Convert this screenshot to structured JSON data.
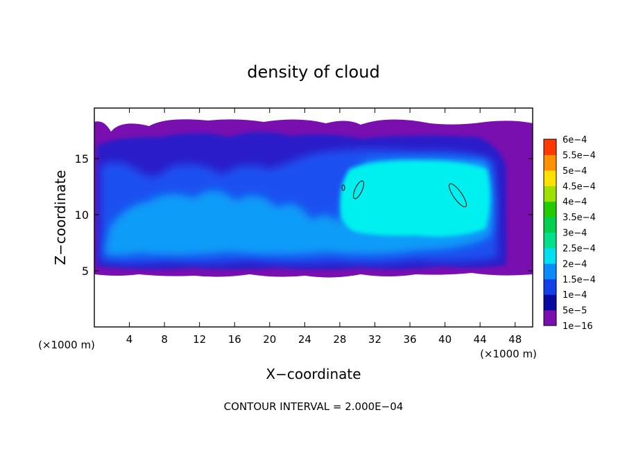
{
  "chart_data": {
    "type": "heatmap",
    "title": "density of cloud",
    "xlabel": "X−coordinate",
    "ylabel": "Z−coordinate",
    "x_unit_left": "(×1000 m)",
    "x_unit_right": "(×1000 m)",
    "footer": "CONTOUR INTERVAL = 2.000E−04",
    "xlim": [
      0,
      50
    ],
    "ylim": [
      0,
      19.5
    ],
    "x_ticks": [
      4,
      8,
      12,
      16,
      20,
      24,
      28,
      32,
      36,
      40,
      44,
      48
    ],
    "x_tick_labels": [
      "4",
      "8",
      "12",
      "16",
      "20",
      "24",
      "28",
      "32",
      "36",
      "40",
      "44",
      "48"
    ],
    "y_ticks": [
      5,
      10,
      15
    ],
    "y_tick_labels": [
      "5",
      "10",
      "15"
    ],
    "colorbar": {
      "labels": [
        "1e−16",
        "5e−5",
        "1e−4",
        "1.5e−4",
        "2e−4",
        "2.5e−4",
        "3e−4",
        "3.5e−4",
        "4e−4",
        "4.5e−4",
        "5e−4",
        "5.5e−4",
        "6e−4"
      ],
      "colors": [
        "#7a0fb0",
        "#0a0aa0",
        "#1440e8",
        "#0a8cff",
        "#00e0f0",
        "#00e08a",
        "#00d050",
        "#22cc00",
        "#a0e000",
        "#ffe000",
        "#ff9000",
        "#ff3a00",
        "#ff8080"
      ]
    },
    "palette": {
      "background_white": "#ffffff",
      "level_purple": "#7a0fb0",
      "level_darkblue": "#2a1ec8",
      "level_blue": "#1a50f0",
      "level_lightblue": "#0a9cf8",
      "level_cyan": "#00f0f0"
    }
  }
}
